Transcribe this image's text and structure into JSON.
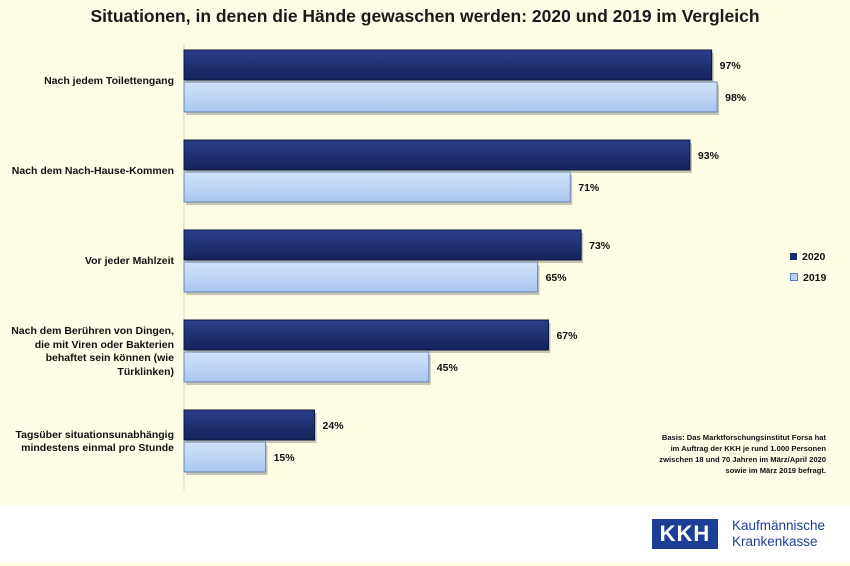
{
  "title": "Situationen, in denen die Hände gewaschen werden: 2020 und 2019 im Vergleich",
  "legend": [
    {
      "label": "2020",
      "color": "#1c2c6b"
    },
    {
      "label": "2019",
      "color": "#b8d2f4"
    }
  ],
  "footnote": [
    "Basis: Das Marktforschungsinstitut Forsa hat",
    "im Auftrag der KKH je rund 1.000 Personen",
    "zwischen 18 und 70 Jahren im März/April 2020",
    "sowie im März 2019 befragt."
  ],
  "logo": {
    "abbr": "KKH",
    "name_line1": "Kaufmännische",
    "name_line2": "Krankenkasse"
  },
  "chart_data": {
    "type": "bar",
    "orientation": "horizontal",
    "title": "Situationen, in denen die Hände gewaschen werden: 2020 und 2019 im Vergleich",
    "categories": [
      [
        "Nach jedem Toilettengang"
      ],
      [
        "Nach dem Nach-Hause-Kommen"
      ],
      [
        "Vor jeder Mahlzeit"
      ],
      [
        "Nach dem Berühren von Dingen,",
        "die mit Viren oder Bakterien",
        "behaftet sein können (wie",
        "Türklinken)"
      ],
      [
        "Tagsüber situationsunabhängig",
        "mindestens einmal pro Stunde"
      ]
    ],
    "series": [
      {
        "name": "2020",
        "values": [
          97,
          93,
          73,
          67,
          24
        ],
        "labels": [
          "97%",
          "93%",
          "73%",
          "67%",
          "24%"
        ],
        "color": "#1c2c6b"
      },
      {
        "name": "2019",
        "values": [
          98,
          71,
          65,
          45,
          15
        ],
        "labels": [
          "98%",
          "71%",
          "65%",
          "45%",
          "15%"
        ],
        "color": "#b8d2f4"
      }
    ],
    "xlim": [
      0,
      100
    ],
    "grid": false,
    "legend_position": "right"
  }
}
